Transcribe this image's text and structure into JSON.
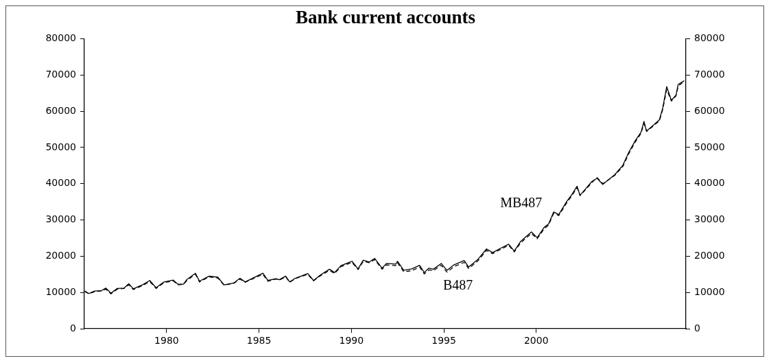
{
  "chart_data": {
    "type": "line",
    "title": "Bank current accounts",
    "xlim": [
      1975.55,
      2008.1
    ],
    "xticks": [
      1980,
      1985,
      1990,
      1995,
      2000
    ],
    "ylim": [
      0,
      80000
    ],
    "yticks": [
      0,
      10000,
      20000,
      30000,
      40000,
      50000,
      60000,
      70000,
      80000
    ],
    "y2lim": [
      0,
      80000
    ],
    "y2ticks": [
      0,
      10000,
      20000,
      30000,
      40000,
      50000,
      60000,
      70000,
      80000
    ],
    "grid": false,
    "legend": false,
    "marker": "none",
    "series": [
      {
        "name": "MB487",
        "color": "#000000",
        "line_style": "solid",
        "x": [
          1975.57,
          1975.79,
          1976.1,
          1976.47,
          1976.71,
          1976.99,
          1977.33,
          1977.7,
          1977.95,
          1978.2,
          1978.69,
          1979.09,
          1979.43,
          1979.86,
          1980.36,
          1980.6,
          1980.91,
          1981.1,
          1981.56,
          1981.78,
          1982.3,
          1982.77,
          1983.11,
          1983.63,
          1983.97,
          1984.25,
          1984.68,
          1985.21,
          1985.48,
          1985.91,
          1986.1,
          1986.44,
          1986.66,
          1986.96,
          1987.64,
          1987.95,
          1988.32,
          1988.81,
          1989.09,
          1989.43,
          1990.03,
          1990.36,
          1990.64,
          1990.97,
          1991.26,
          1991.66,
          1991.9,
          1992.4,
          1992.49,
          1992.83,
          1993.26,
          1993.69,
          1993.94,
          1994.19,
          1994.43,
          1994.86,
          1995.17,
          1995.54,
          1996.1,
          1996.34,
          1996.84,
          1997.31,
          1997.64,
          1998.07,
          1998.51,
          1998.81,
          1999.16,
          1999.74,
          2000.05,
          2000.42,
          2000.67,
          2000.94,
          2001.22,
          2001.66,
          2001.9,
          2002.21,
          2002.37,
          2002.64,
          2003.01,
          2003.29,
          2003.6,
          2004.25,
          2004.68,
          2004.99,
          2005.36,
          2005.67,
          2005.83,
          2005.97,
          2006.66,
          2006.84,
          2007.06,
          2007.31,
          2007.56,
          2007.68,
          2008.01
        ],
        "values": [
          10400,
          9700,
          10400,
          10500,
          11200,
          9800,
          11100,
          11200,
          12400,
          11000,
          12100,
          13300,
          11300,
          12900,
          13400,
          12300,
          12300,
          13600,
          15300,
          13100,
          14500,
          14200,
          12100,
          12600,
          13900,
          12900,
          14000,
          15300,
          13300,
          13800,
          13500,
          14500,
          12900,
          13900,
          15200,
          13300,
          14800,
          16400,
          15500,
          17400,
          18600,
          16500,
          18900,
          18400,
          19400,
          16700,
          18000,
          17800,
          18600,
          16100,
          16500,
          17500,
          15500,
          16700,
          16400,
          18000,
          16100,
          17600,
          18800,
          17000,
          19100,
          22000,
          21000,
          22200,
          23300,
          21400,
          24100,
          26700,
          25100,
          27900,
          28900,
          32200,
          31500,
          35200,
          36800,
          39300,
          36800,
          38400,
          40600,
          41500,
          39800,
          42500,
          45000,
          48500,
          51900,
          54200,
          57200,
          54500,
          57600,
          60800,
          66800,
          63000,
          64400,
          67400,
          68400
        ]
      },
      {
        "name": "B487",
        "color": "#000000",
        "line_style": "dashed",
        "x": [
          1975.57,
          1975.79,
          1976.1,
          1976.47,
          1976.71,
          1976.99,
          1977.33,
          1977.7,
          1977.95,
          1978.2,
          1978.69,
          1979.09,
          1979.43,
          1979.86,
          1980.36,
          1980.6,
          1980.91,
          1981.1,
          1981.56,
          1981.78,
          1982.3,
          1982.77,
          1983.11,
          1983.63,
          1983.97,
          1984.25,
          1984.68,
          1985.21,
          1985.48,
          1985.91,
          1986.1,
          1986.44,
          1986.66,
          1986.96,
          1987.64,
          1987.95,
          1988.32,
          1988.81,
          1989.09,
          1989.43,
          1990.03,
          1990.36,
          1990.64,
          1990.97,
          1991.26,
          1991.66,
          1991.9,
          1992.4,
          1992.49,
          1992.83,
          1993.26,
          1993.69,
          1993.94,
          1994.19,
          1994.43,
          1994.86,
          1995.17,
          1995.54,
          1996.1,
          1996.34,
          1996.84,
          1997.31,
          1997.64,
          1998.07,
          1998.51,
          1998.81,
          1999.16,
          1999.74,
          2000.05,
          2000.42,
          2000.67,
          2000.94,
          2001.22,
          2001.66,
          2001.9,
          2002.21,
          2002.37,
          2002.64,
          2003.01,
          2003.29,
          2003.6,
          2004.25,
          2004.68,
          2004.99,
          2005.36,
          2005.67,
          2005.83,
          2005.97,
          2006.66,
          2006.84,
          2007.06,
          2007.31,
          2007.56,
          2007.68,
          2008.01
        ],
        "values": [
          10300,
          9600,
          10200,
          10400,
          10900,
          9600,
          10900,
          11100,
          12100,
          10800,
          11900,
          13000,
          11100,
          12700,
          13200,
          12100,
          12200,
          13300,
          15000,
          12900,
          14300,
          14000,
          12000,
          12500,
          13700,
          12800,
          13800,
          15000,
          13100,
          13700,
          13400,
          14300,
          12800,
          13800,
          15000,
          13200,
          14600,
          16100,
          15200,
          17100,
          18300,
          16300,
          18600,
          18200,
          19100,
          16400,
          17600,
          17400,
          18200,
          15700,
          16000,
          17000,
          15100,
          16200,
          16000,
          17500,
          15600,
          17100,
          18300,
          16600,
          18700,
          21600,
          20700,
          21900,
          23000,
          21200,
          23700,
          26300,
          24800,
          27500,
          28600,
          31800,
          31200,
          34800,
          36500,
          38900,
          36700,
          38200,
          40300,
          41700,
          40000,
          42300,
          44700,
          48100,
          51500,
          53900,
          56600,
          54400,
          57300,
          60400,
          66000,
          62800,
          64200,
          66900,
          68300
        ]
      }
    ]
  }
}
